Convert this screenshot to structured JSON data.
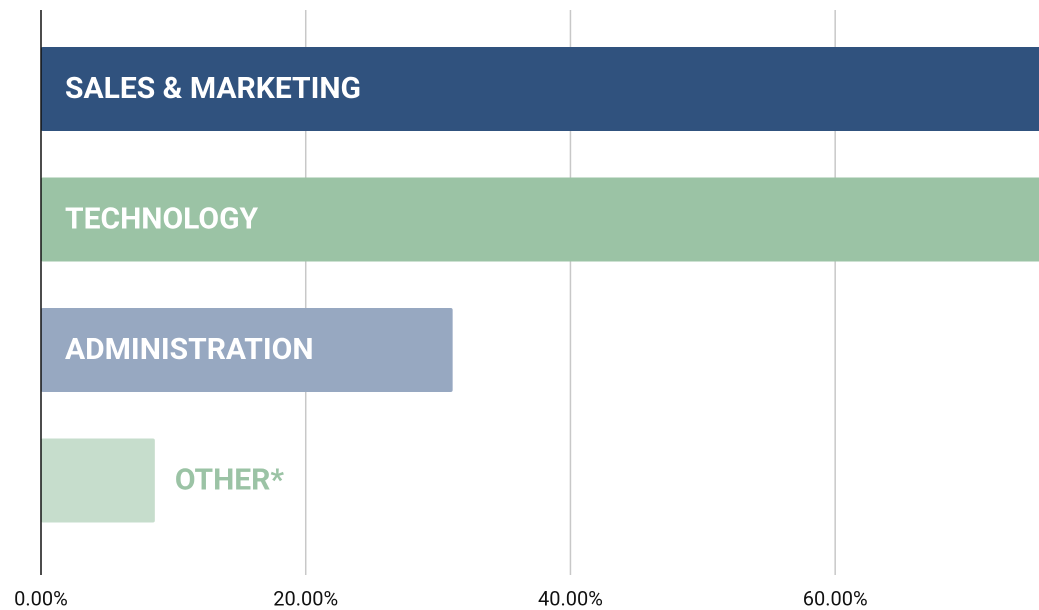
{
  "chart_data": {
    "type": "bar",
    "orientation": "horizontal",
    "categories": [
      "SALES & MARKETING",
      "TECHNOLOGY",
      "ADMINISTRATION",
      "OTHER*"
    ],
    "values": [
      80,
      78,
      31.1,
      8.6
    ],
    "colors": [
      "#30527e",
      "#9bc3a5",
      "#97a8c1",
      "#c6ddcc"
    ],
    "xlim": [
      0,
      75.4
    ],
    "xticks": [
      {
        "value": 0,
        "label": "0.00%"
      },
      {
        "value": 20,
        "label": "20.00%"
      },
      {
        "value": 40,
        "label": "40.00%"
      },
      {
        "value": 60,
        "label": "60.00%"
      }
    ],
    "grid": true
  }
}
